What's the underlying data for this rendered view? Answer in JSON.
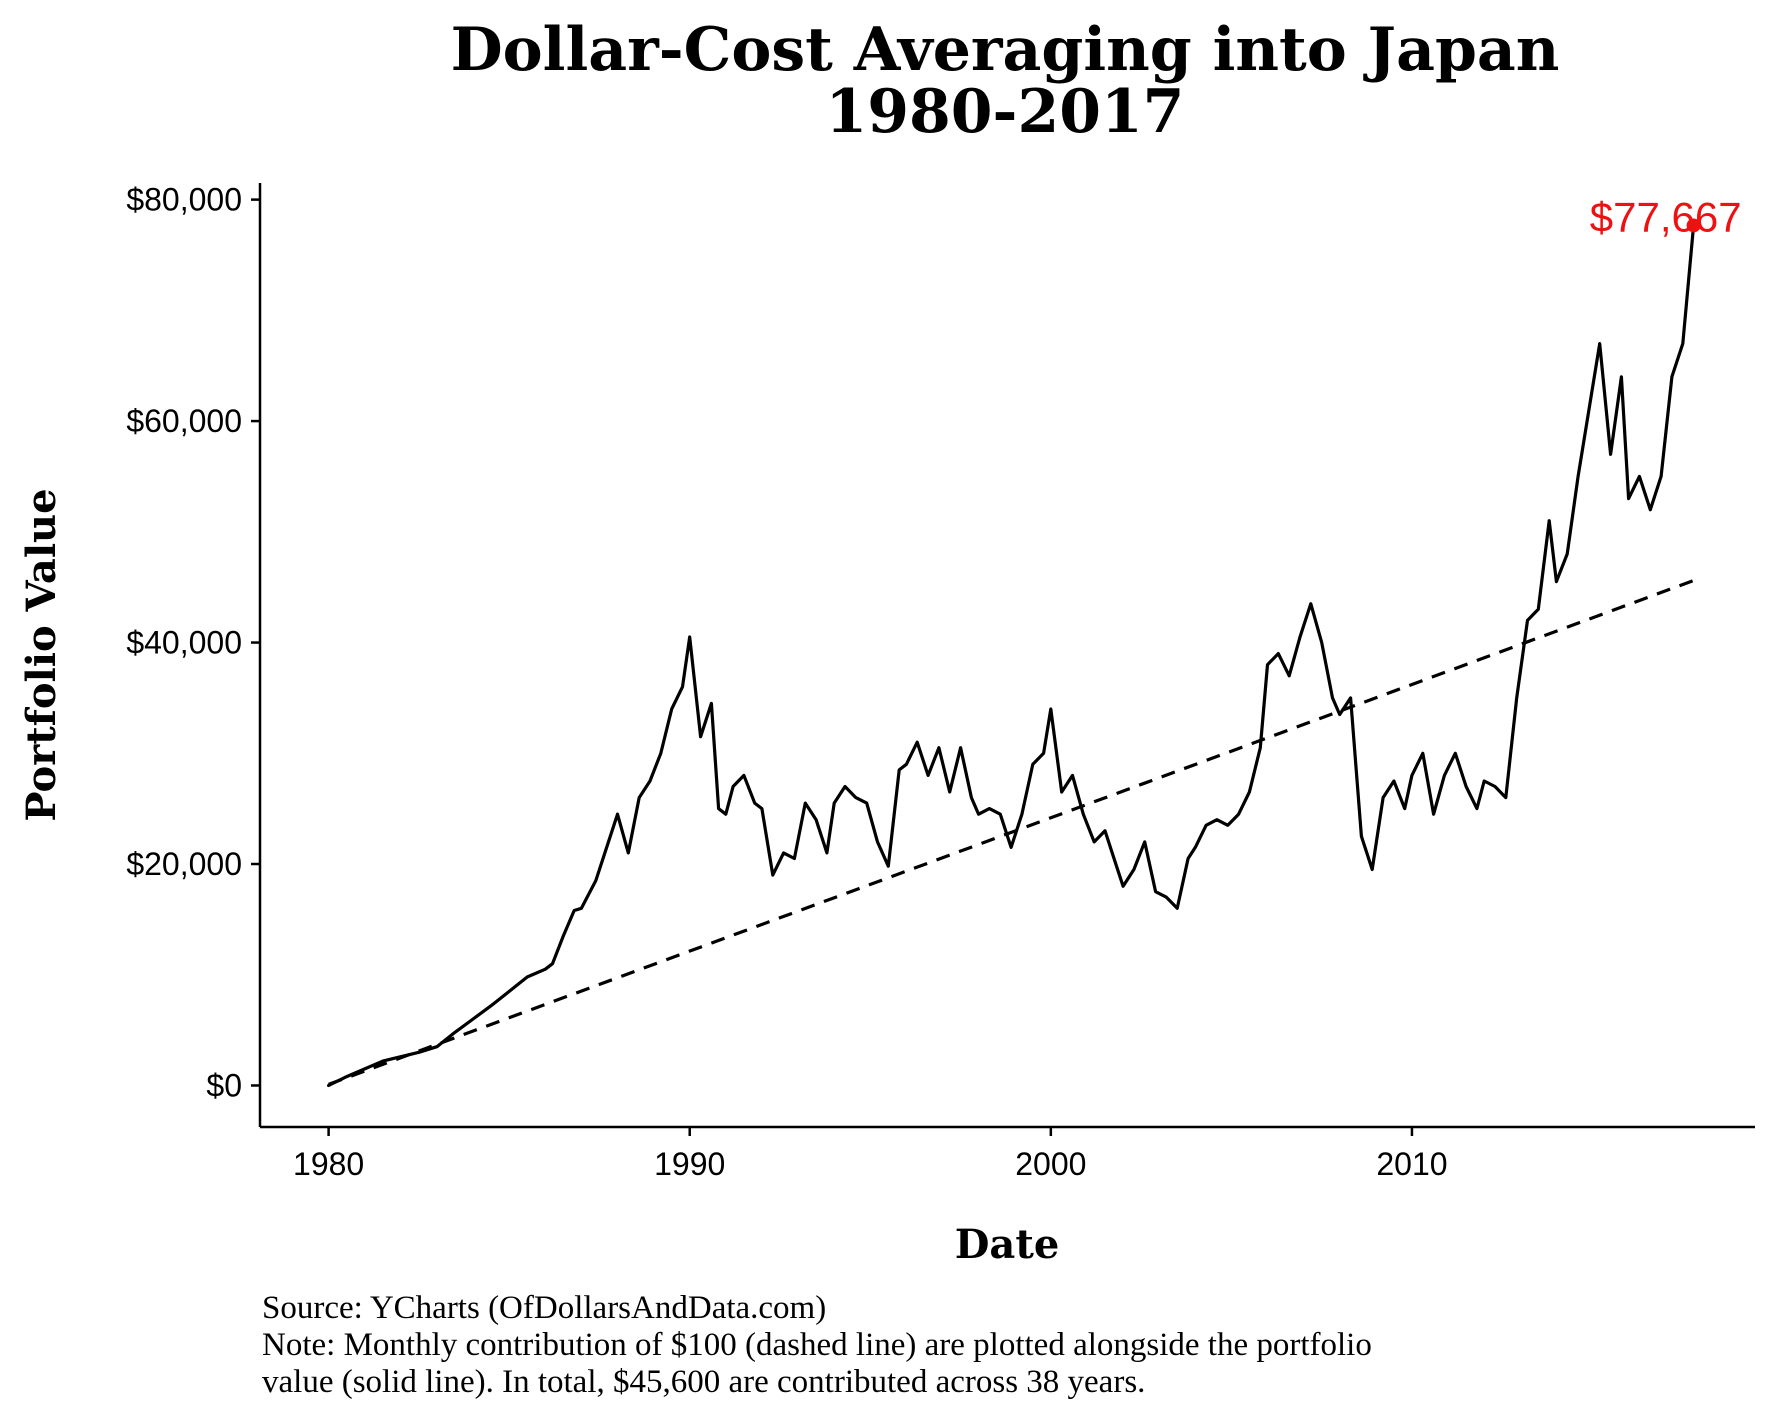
{
  "chart_data": {
    "type": "line",
    "title": [
      "Dollar-Cost Averaging into Japan",
      "1980-2017"
    ],
    "xlabel": "Date",
    "ylabel": "Portfolio Value",
    "xlim": [
      1978.1,
      2019.5
    ],
    "ylim": [
      -3750,
      81500
    ],
    "x_ticks": [
      1980,
      1990,
      2000,
      2010
    ],
    "x_tick_labels": [
      "1980",
      "1990",
      "2000",
      "2010"
    ],
    "y_ticks": [
      0,
      20000,
      40000,
      60000,
      80000
    ],
    "y_tick_labels": [
      "$0",
      "$20,000",
      "$40,000",
      "$60,000",
      "$80,000"
    ],
    "grid": false,
    "legend": "none",
    "series": [
      {
        "style": "solid",
        "color": "#000000",
        "x": [
          1980.0,
          1980.5,
          1981.0,
          1981.5,
          1982.0,
          1982.5,
          1983.0,
          1983.5,
          1984.0,
          1984.5,
          1985.0,
          1985.5,
          1986.0,
          1986.2,
          1986.5,
          1986.8,
          1987.0,
          1987.4,
          1987.8,
          1988.0,
          1988.3,
          1988.6,
          1988.9,
          1989.2,
          1989.5,
          1989.8,
          1990.0,
          1990.3,
          1990.6,
          1990.8,
          1991.0,
          1991.2,
          1991.5,
          1991.8,
          1992.0,
          1992.3,
          1992.6,
          1992.9,
          1993.2,
          1993.5,
          1993.8,
          1994.0,
          1994.3,
          1994.6,
          1994.9,
          1995.2,
          1995.5,
          1995.8,
          1996.0,
          1996.3,
          1996.6,
          1996.9,
          1997.2,
          1997.5,
          1997.8,
          1998.0,
          1998.3,
          1998.6,
          1998.9,
          1999.2,
          1999.5,
          1999.8,
          2000.0,
          2000.3,
          2000.6,
          2000.9,
          2001.2,
          2001.5,
          2001.8,
          2002.0,
          2002.3,
          2002.6,
          2002.9,
          2003.2,
          2003.5,
          2003.8,
          2004.0,
          2004.3,
          2004.6,
          2004.9,
          2005.2,
          2005.5,
          2005.8,
          2006.0,
          2006.3,
          2006.6,
          2006.9,
          2007.2,
          2007.5,
          2007.8,
          2008.0,
          2008.3,
          2008.6,
          2008.9,
          2009.2,
          2009.5,
          2009.8,
          2010.0,
          2010.3,
          2010.6,
          2010.9,
          2011.2,
          2011.5,
          2011.8,
          2012.0,
          2012.3,
          2012.6,
          2012.9,
          2013.2,
          2013.5,
          2013.8,
          2014.0,
          2014.3,
          2014.6,
          2014.9,
          2015.2,
          2015.5,
          2015.8,
          2016.0,
          2016.3,
          2016.6,
          2016.9,
          2017.2,
          2017.5,
          2017.8
        ],
        "values": [
          0,
          800,
          1500,
          2200,
          2600,
          3000,
          3500,
          4800,
          6000,
          7200,
          8500,
          9800,
          10500,
          11000,
          13500,
          15800,
          16000,
          18500,
          22500,
          24500,
          21000,
          26000,
          27500,
          30000,
          34000,
          36000,
          40500,
          31500,
          34500,
          25000,
          24500,
          27000,
          28000,
          25500,
          25000,
          19000,
          21000,
          20500,
          25500,
          24000,
          21000,
          25500,
          27000,
          26000,
          25500,
          22000,
          19800,
          28500,
          29000,
          31000,
          28000,
          30500,
          26500,
          30500,
          26000,
          24500,
          25000,
          24500,
          21500,
          24500,
          29000,
          30000,
          34000,
          26500,
          28000,
          24500,
          22000,
          23000,
          20000,
          18000,
          19500,
          22000,
          17500,
          17000,
          16000,
          20500,
          21500,
          23500,
          24000,
          23500,
          24500,
          26500,
          30500,
          38000,
          39000,
          37000,
          40500,
          43500,
          40000,
          35000,
          33500,
          35000,
          22500,
          19500,
          26000,
          27500,
          25000,
          28000,
          30000,
          24500,
          28000,
          30000,
          27000,
          25000,
          27500,
          27000,
          26000,
          35000,
          42000,
          43000,
          51000,
          45500,
          48000,
          55000,
          61000,
          67000,
          57000,
          64000,
          53000,
          55000,
          52000,
          55000,
          64000,
          67000,
          77667
        ]
      },
      {
        "style": "dashed",
        "color": "#000000",
        "x": [
          1980.0,
          2017.8
        ],
        "values": [
          100,
          45600
        ]
      }
    ],
    "annotations": [
      {
        "text": "$77,667",
        "x": 2017.8,
        "y": 77667,
        "color": "#ee1111"
      }
    ],
    "caption": [
      "Source: YCharts (OfDollarsAndData.com)",
      "Note: Monthly contribution of $100 (dashed line) are plotted alongside the portfolio",
      "value (solid line). In total, $45,600 are contributed across 38 years."
    ]
  }
}
